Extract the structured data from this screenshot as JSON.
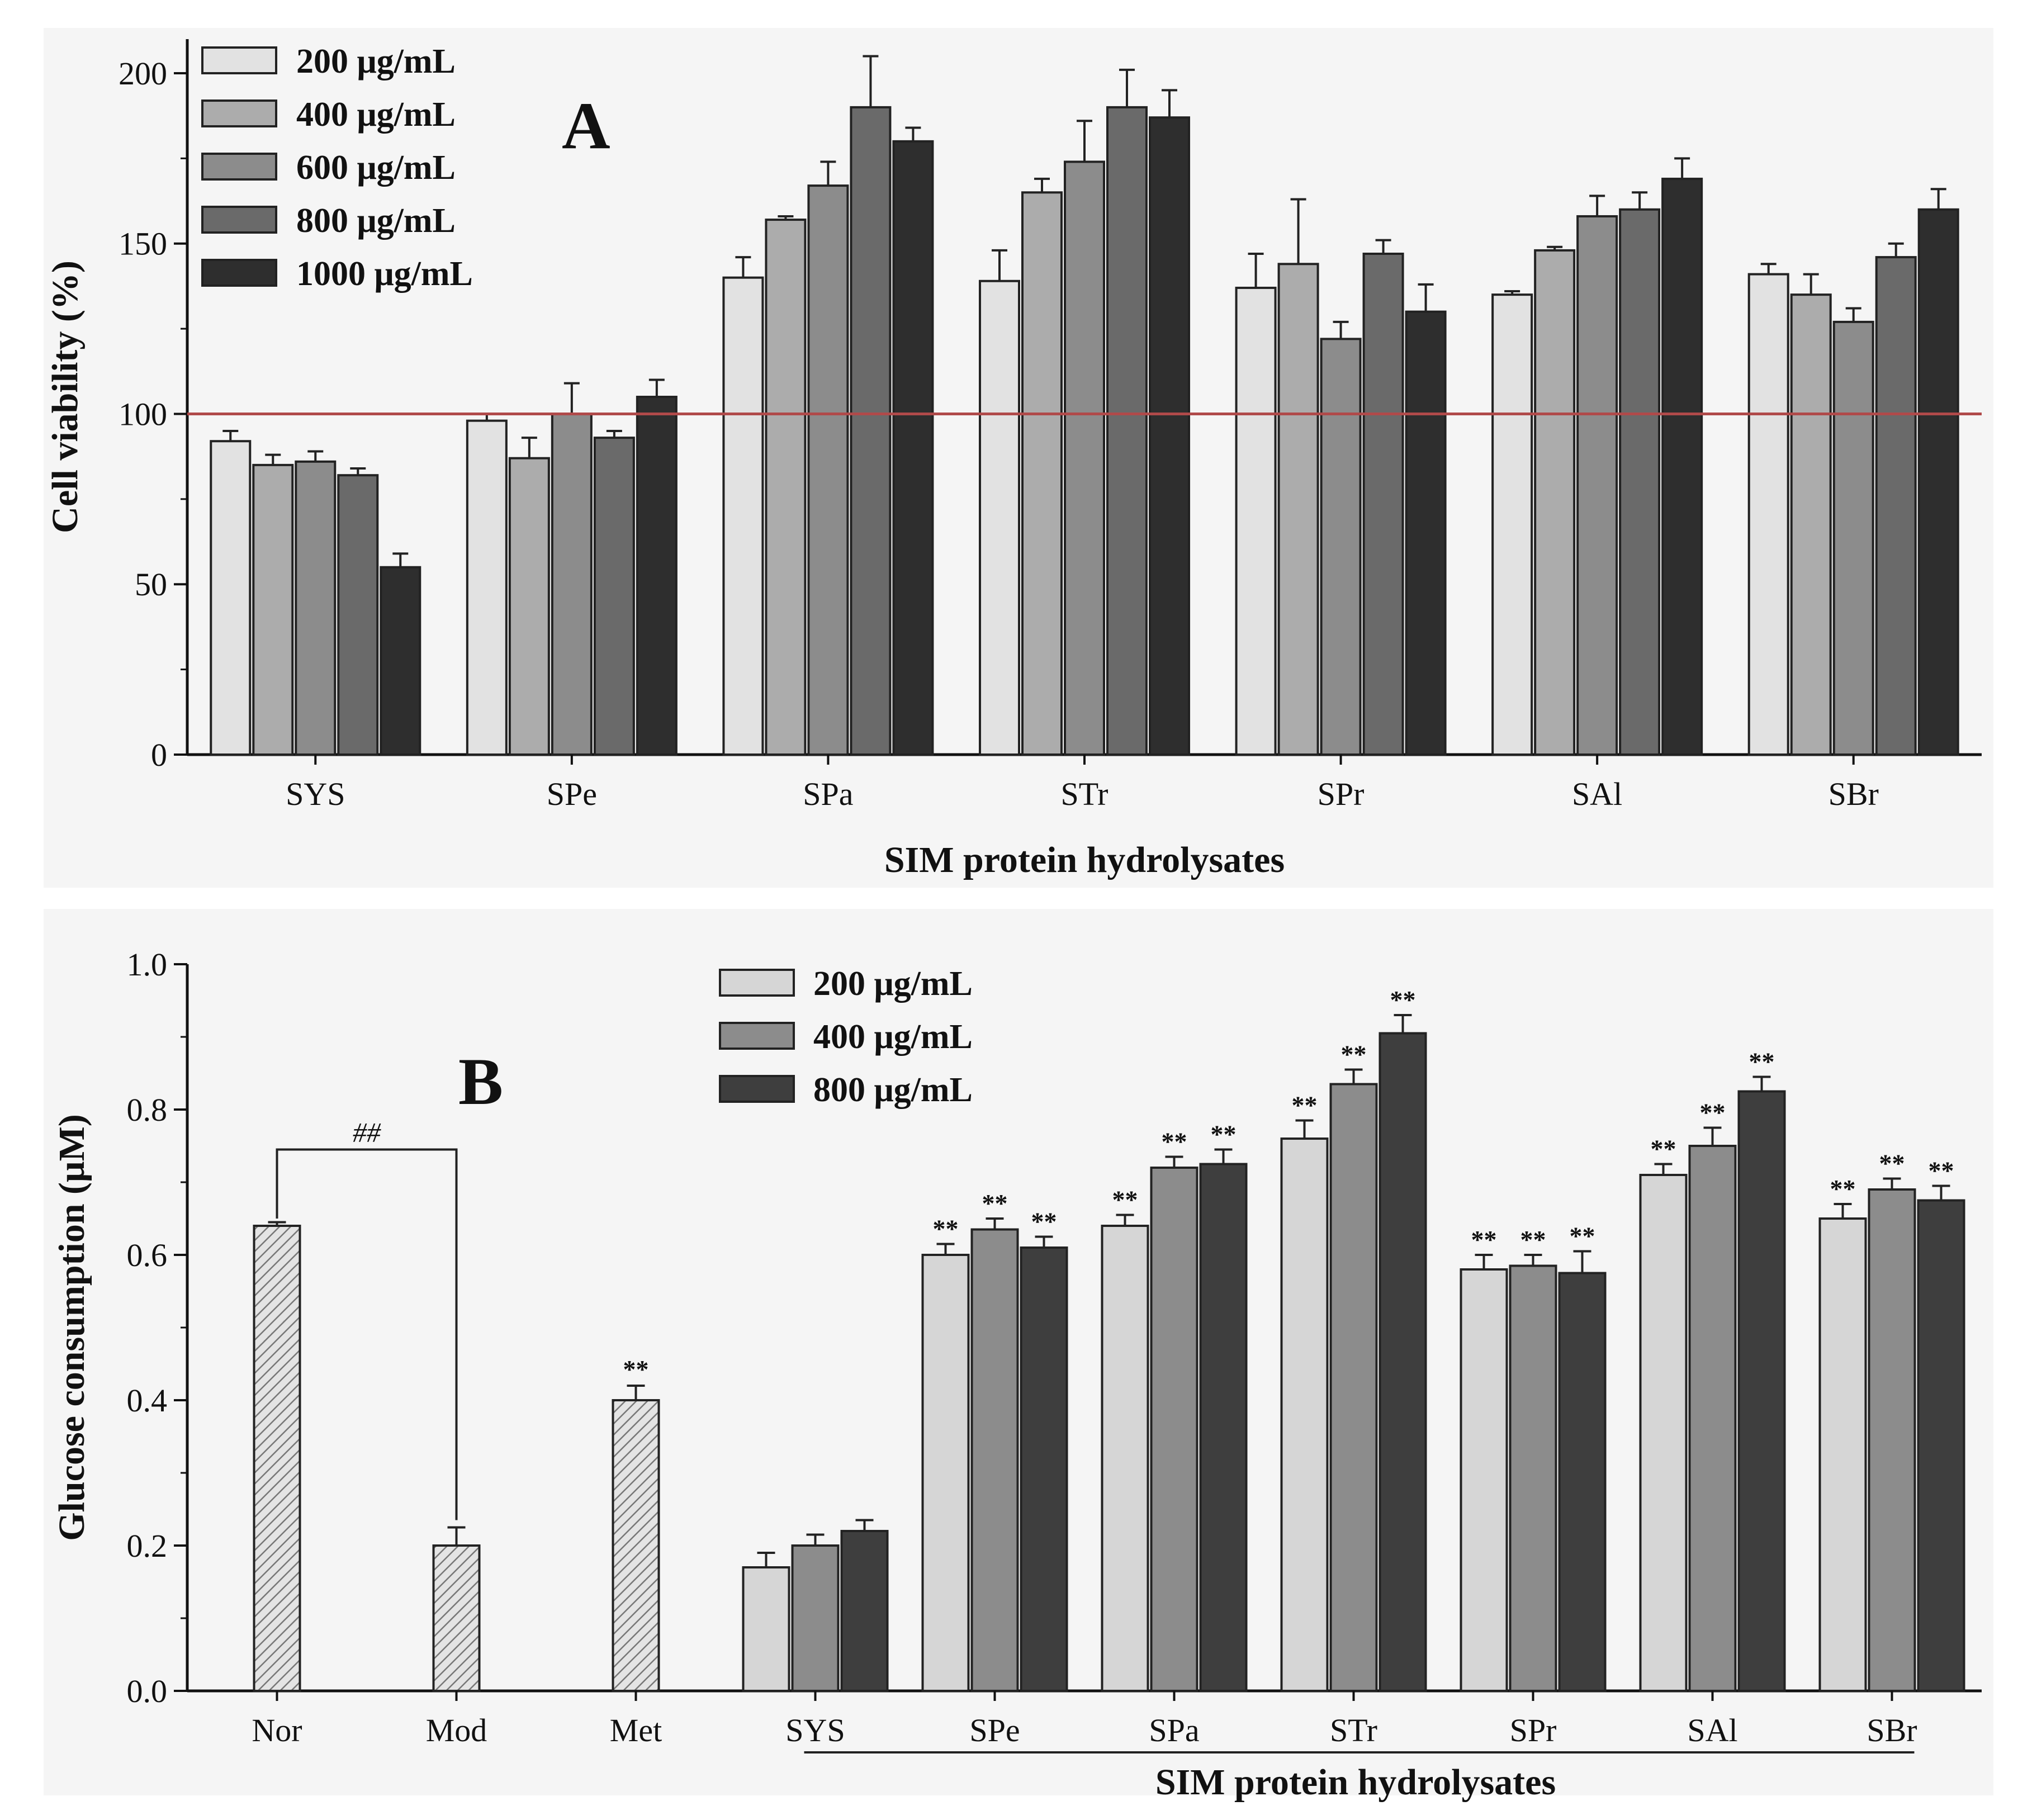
{
  "chart_data": [
    {
      "type": "bar",
      "panel_label": "A",
      "xlabel": "SIM protein hydrolysates",
      "ylabel": "Cell viability (%)",
      "ylim": [
        0,
        210
      ],
      "yticks": [
        0,
        50,
        100,
        150,
        200
      ],
      "reference_line": 100,
      "reference_color": "#b04a4a",
      "legend_position": "top-left",
      "categories": [
        "SYS",
        "SPe",
        "SPa",
        "STr",
        "SPr",
        "SAl",
        "SBr"
      ],
      "series": [
        {
          "name": "200 μg/mL",
          "color": "#e2e2e2",
          "values": [
            92,
            98,
            140,
            139,
            137,
            135,
            141
          ],
          "errors": [
            3,
            2,
            6,
            9,
            10,
            1,
            3
          ]
        },
        {
          "name": "400 μg/mL",
          "color": "#acacac",
          "values": [
            85,
            87,
            157,
            165,
            144,
            148,
            135
          ],
          "errors": [
            3,
            6,
            1,
            4,
            19,
            1,
            6
          ]
        },
        {
          "name": "600 μg/mL",
          "color": "#8c8c8c",
          "values": [
            86,
            100,
            167,
            174,
            122,
            158,
            127
          ],
          "errors": [
            3,
            9,
            7,
            12,
            5,
            6,
            4
          ]
        },
        {
          "name": "800 μg/mL",
          "color": "#6a6a6a",
          "values": [
            82,
            93,
            190,
            190,
            147,
            160,
            146
          ],
          "errors": [
            2,
            2,
            15,
            11,
            4,
            5,
            4
          ]
        },
        {
          "name": "1000 μg/mL",
          "color": "#2e2e2e",
          "values": [
            55,
            105,
            180,
            187,
            130,
            169,
            160
          ],
          "errors": [
            4,
            5,
            4,
            8,
            8,
            6,
            6
          ]
        }
      ]
    },
    {
      "type": "bar",
      "panel_label": "B",
      "xlabel": "SIM protein hydrolysates",
      "ylabel": "Glucose consumption (μM)",
      "ylim": [
        0,
        1.0
      ],
      "yticks": [
        "0.0",
        "0.2",
        "0.4",
        "0.6",
        "0.8",
        "1.0"
      ],
      "legend_position": "top-center",
      "significance_symbol": "**",
      "bracket_label": "##",
      "controls": [
        {
          "name": "Nor",
          "value": 0.64,
          "error": 0.005,
          "sig": ""
        },
        {
          "name": "Mod",
          "value": 0.2,
          "error": 0.025,
          "sig": ""
        },
        {
          "name": "Met",
          "value": 0.4,
          "error": 0.02,
          "sig": "**"
        }
      ],
      "categories": [
        "SYS",
        "SPe",
        "SPa",
        "STr",
        "SPr",
        "SAl",
        "SBr"
      ],
      "series": [
        {
          "name": "200 μg/mL",
          "color": "#d6d6d6",
          "values": [
            0.17,
            0.6,
            0.64,
            0.76,
            0.58,
            0.71,
            0.65
          ],
          "errors": [
            0.02,
            0.015,
            0.015,
            0.025,
            0.02,
            0.015,
            0.02
          ],
          "sig": [
            "",
            "**",
            "**",
            "**",
            "**",
            "**",
            "**"
          ]
        },
        {
          "name": "400 μg/mL",
          "color": "#8c8c8c",
          "values": [
            0.2,
            0.635,
            0.72,
            0.835,
            0.585,
            0.75,
            0.69
          ],
          "errors": [
            0.015,
            0.015,
            0.015,
            0.02,
            0.015,
            0.025,
            0.015
          ],
          "sig": [
            "",
            "**",
            "**",
            "**",
            "**",
            "**",
            "**"
          ]
        },
        {
          "name": "800 μg/mL",
          "color": "#3e3e3e",
          "values": [
            0.22,
            0.61,
            0.725,
            0.905,
            0.575,
            0.825,
            0.675
          ],
          "errors": [
            0.015,
            0.015,
            0.02,
            0.025,
            0.03,
            0.02,
            0.02
          ],
          "sig": [
            "",
            "**",
            "**",
            "**",
            "**",
            "**",
            "**"
          ]
        }
      ]
    }
  ]
}
